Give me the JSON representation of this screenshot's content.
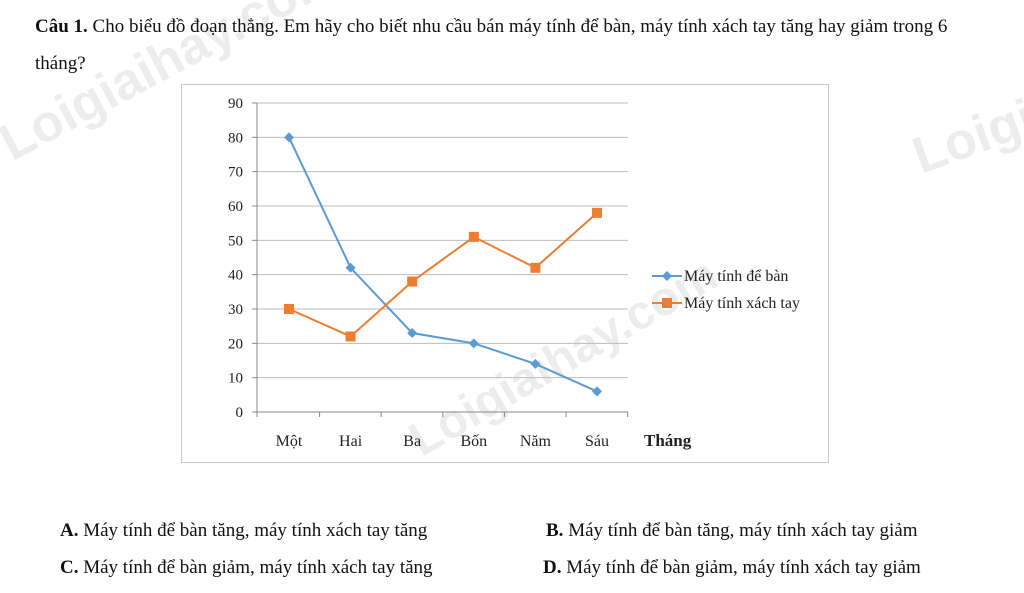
{
  "question": {
    "number_label": "Câu 1.",
    "text": " Cho biểu đồ đoạn thẳng. Em hãy cho biết nhu cầu bán máy tính để bàn, máy tính xách tay tăng hay giảm trong 6 tháng?"
  },
  "watermark": "Loigiaihay.com",
  "chart_data": {
    "type": "line",
    "categories": [
      "Một",
      "Hai",
      "Ba",
      "Bốn",
      "Năm",
      "Sáu"
    ],
    "xlabel": "Tháng",
    "ylabel": "",
    "ylim": [
      0,
      90
    ],
    "yticks": [
      0,
      10,
      20,
      30,
      40,
      50,
      60,
      70,
      80,
      90
    ],
    "grid": true,
    "legend_position": "right",
    "series": [
      {
        "name": "Máy tính để bàn",
        "values": [
          80,
          42,
          23,
          20,
          14,
          6
        ],
        "color": "#5b9bd5",
        "marker": "diamond"
      },
      {
        "name": "Máy tính xách tay",
        "values": [
          30,
          22,
          38,
          51,
          42,
          58
        ],
        "color": "#ed7d31",
        "marker": "square"
      }
    ]
  },
  "answers": [
    {
      "letter": "A.",
      "text": " Máy tính để bàn tăng, máy tính xách tay tăng"
    },
    {
      "letter": "B.",
      "text": " Máy tính để bàn tăng, máy tính xách tay giảm"
    },
    {
      "letter": "C.",
      "text": " Máy tính để bàn giảm, máy tính xách tay tăng"
    },
    {
      "letter": "D.",
      "text": " Máy tính để bàn giảm, máy tính xách tay giảm"
    }
  ]
}
